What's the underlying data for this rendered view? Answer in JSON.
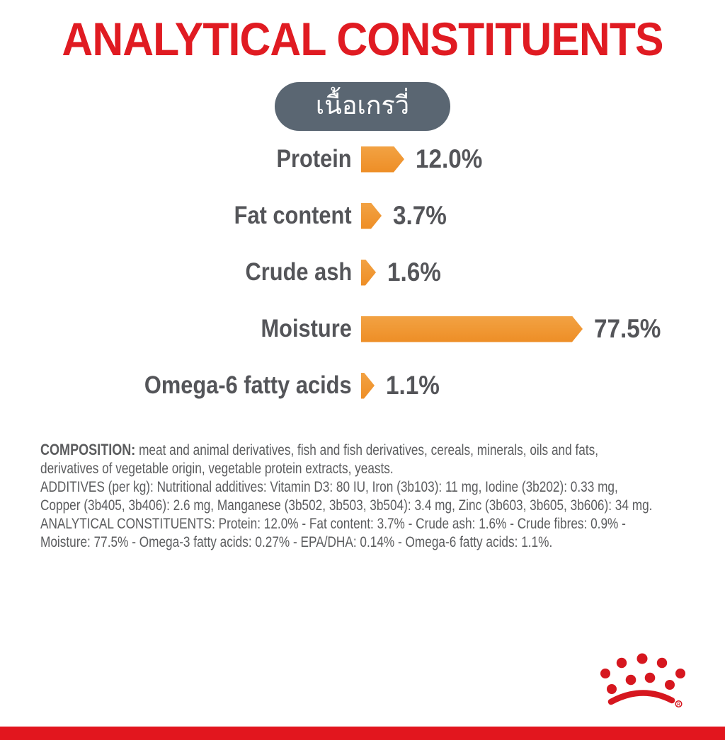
{
  "header": {
    "title": "ANALYTICAL CONSTITUENTS"
  },
  "badge": {
    "label": "เนื้อเกรวี่"
  },
  "chart_data": {
    "type": "bar",
    "orientation": "horizontal",
    "title": "ANALYTICAL CONSTITUENTS",
    "categories": [
      "Protein",
      "Fat content",
      "Crude ash",
      "Moisture",
      "Omega-6 fatty acids"
    ],
    "values": [
      12.0,
      3.7,
      1.6,
      77.5,
      1.1
    ],
    "value_labels": [
      "12.0%",
      "3.7%",
      "1.6%",
      "77.5%",
      "1.1%"
    ],
    "unit": "%",
    "xlim": [
      0,
      80
    ],
    "grid": false,
    "legend": false,
    "bar_shape": "arrow-right",
    "bar_color_top": "#f2a243",
    "bar_color_bottom": "#ee8e26"
  },
  "info_text": {
    "composition_label": "COMPOSITION:",
    "composition_line1": " meat and animal derivatives, fish and fish derivatives, cereals, minerals, oils and fats,",
    "composition_line2": "derivatives of vegetable origin, vegetable protein extracts, yeasts.",
    "additives_line1": "ADDITIVES (per kg): Nutritional additives: Vitamin D3: 80 IU, Iron (3b103): 11 mg, Iodine (3b202): 0.33 mg,",
    "additives_line2": "Copper (3b405, 3b406): 2.6 mg, Manganese (3b502, 3b503, 3b504): 3.4 mg, Zinc (3b603, 3b605, 3b606): 34 mg.",
    "analytical_line1": "ANALYTICAL CONSTITUENTS: Protein: 12.0% - Fat content: 3.7% - Crude ash: 1.6% - Crude fibres: 0.9% -",
    "analytical_line2": "Moisture: 77.5% - Omega-3 fatty acids: 0.27% - EPA/DHA: 0.14% - Omega-6 fatty acids: 1.1%."
  },
  "logo": {
    "name": "royal-canin-crown-logo",
    "color": "#d6171f"
  },
  "colors": {
    "accent_red": "#e01b22",
    "bottom_bar_red": "#e2161e",
    "bar_orange": "#ef9431",
    "pill_gray": "#5a6672",
    "text_gray": "#545559",
    "fine_print_gray": "#5b5c5e"
  }
}
